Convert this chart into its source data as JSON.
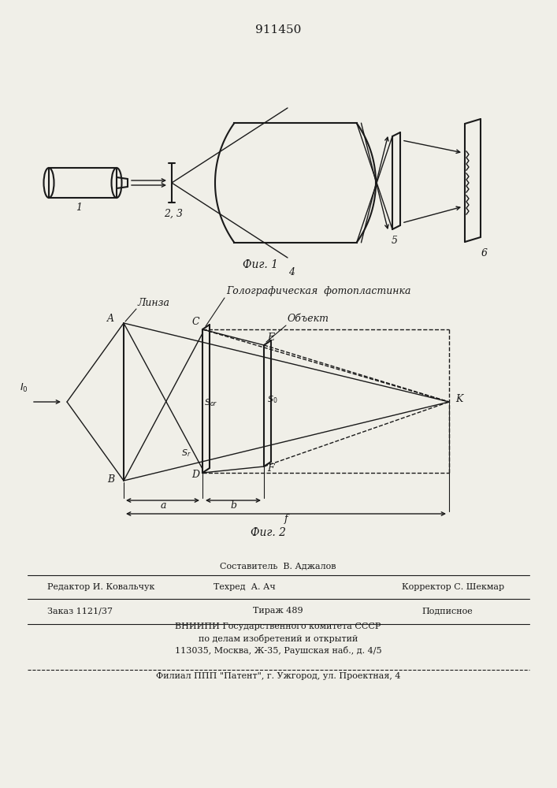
{
  "title": "911450",
  "title_fontsize": 11,
  "bg_color": "#f0efe8",
  "line_color": "#1a1a1a",
  "fig1_caption": "Фиг. 1",
  "fig2_caption": "Фиг. 2"
}
